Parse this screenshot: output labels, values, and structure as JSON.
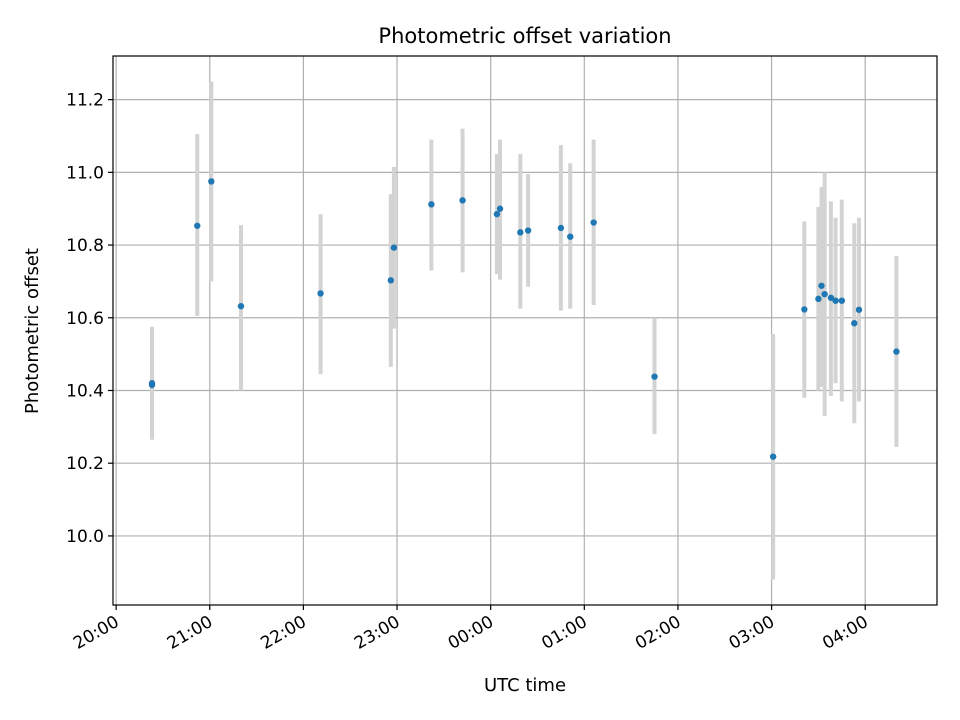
{
  "chart_data": {
    "type": "scatter",
    "title": "Photometric offset variation",
    "xlabel": "UTC time",
    "ylabel": "Photometric offset",
    "grid": true,
    "x_axis": {
      "kind": "time",
      "min": "2000-01-01T19:58",
      "max": "2000-01-02T04:46"
    },
    "ylim": [
      9.81,
      11.32
    ],
    "x_ticks": [
      {
        "t": "2000-01-01T20:00",
        "label": "20:00"
      },
      {
        "t": "2000-01-01T21:00",
        "label": "21:00"
      },
      {
        "t": "2000-01-01T22:00",
        "label": "22:00"
      },
      {
        "t": "2000-01-01T23:00",
        "label": "23:00"
      },
      {
        "t": "2000-01-02T00:00",
        "label": "00:00"
      },
      {
        "t": "2000-01-02T01:00",
        "label": "01:00"
      },
      {
        "t": "2000-01-02T02:00",
        "label": "02:00"
      },
      {
        "t": "2000-01-02T03:00",
        "label": "03:00"
      },
      {
        "t": "2000-01-02T04:00",
        "label": "04:00"
      }
    ],
    "y_ticks": [
      {
        "v": 10.0,
        "label": "10.0"
      },
      {
        "v": 10.2,
        "label": "10.2"
      },
      {
        "v": 10.4,
        "label": "10.4"
      },
      {
        "v": 10.6,
        "label": "10.6"
      },
      {
        "v": 10.8,
        "label": "10.8"
      },
      {
        "v": 11.0,
        "label": "11.0"
      },
      {
        "v": 11.2,
        "label": "11.2"
      }
    ],
    "colors": {
      "points": "#1f77b4",
      "errorbars": "#d3d3d3",
      "grid": "#b0b0b0"
    },
    "points": [
      {
        "t": "2000-01-01T20:23",
        "y": 10.415,
        "lo": 10.265,
        "hi": 10.575
      },
      {
        "t": "2000-01-01T20:23",
        "y": 10.42,
        "lo": 10.265,
        "hi": 10.575
      },
      {
        "t": "2000-01-01T20:52",
        "y": 10.853,
        "lo": 10.605,
        "hi": 11.105
      },
      {
        "t": "2000-01-01T21:01",
        "y": 10.975,
        "lo": 10.7,
        "hi": 11.25
      },
      {
        "t": "2000-01-01T21:20",
        "y": 10.632,
        "lo": 10.4,
        "hi": 10.855
      },
      {
        "t": "2000-01-01T22:11",
        "y": 10.667,
        "lo": 10.445,
        "hi": 10.885
      },
      {
        "t": "2000-01-01T22:56",
        "y": 10.703,
        "lo": 10.465,
        "hi": 10.94
      },
      {
        "t": "2000-01-01T22:58",
        "y": 10.793,
        "lo": 10.57,
        "hi": 11.015
      },
      {
        "t": "2000-01-01T23:22",
        "y": 10.912,
        "lo": 10.73,
        "hi": 11.09
      },
      {
        "t": "2000-01-01T23:42",
        "y": 10.923,
        "lo": 10.725,
        "hi": 11.12
      },
      {
        "t": "2000-01-02T00:04",
        "y": 10.885,
        "lo": 10.72,
        "hi": 11.05
      },
      {
        "t": "2000-01-02T00:06",
        "y": 10.9,
        "lo": 10.705,
        "hi": 11.09
      },
      {
        "t": "2000-01-02T00:19",
        "y": 10.835,
        "lo": 10.625,
        "hi": 11.05
      },
      {
        "t": "2000-01-02T00:24",
        "y": 10.84,
        "lo": 10.685,
        "hi": 10.995
      },
      {
        "t": "2000-01-02T00:45",
        "y": 10.847,
        "lo": 10.62,
        "hi": 11.075
      },
      {
        "t": "2000-01-02T00:51",
        "y": 10.823,
        "lo": 10.625,
        "hi": 11.025
      },
      {
        "t": "2000-01-02T01:06",
        "y": 10.862,
        "lo": 10.635,
        "hi": 11.09
      },
      {
        "t": "2000-01-02T01:45",
        "y": 10.438,
        "lo": 10.28,
        "hi": 10.6
      },
      {
        "t": "2000-01-02T03:01",
        "y": 10.218,
        "lo": 9.88,
        "hi": 10.555
      },
      {
        "t": "2000-01-02T03:21",
        "y": 10.623,
        "lo": 10.38,
        "hi": 10.865
      },
      {
        "t": "2000-01-02T03:30",
        "y": 10.652,
        "lo": 10.4,
        "hi": 10.905
      },
      {
        "t": "2000-01-02T03:32",
        "y": 10.688,
        "lo": 10.41,
        "hi": 10.96
      },
      {
        "t": "2000-01-02T03:34",
        "y": 10.665,
        "lo": 10.33,
        "hi": 11.0
      },
      {
        "t": "2000-01-02T03:38",
        "y": 10.655,
        "lo": 10.385,
        "hi": 10.92
      },
      {
        "t": "2000-01-02T03:41",
        "y": 10.647,
        "lo": 10.42,
        "hi": 10.875
      },
      {
        "t": "2000-01-02T03:45",
        "y": 10.647,
        "lo": 10.37,
        "hi": 10.925
      },
      {
        "t": "2000-01-02T03:53",
        "y": 10.585,
        "lo": 10.31,
        "hi": 10.86
      },
      {
        "t": "2000-01-02T03:56",
        "y": 10.622,
        "lo": 10.37,
        "hi": 10.875
      },
      {
        "t": "2000-01-02T04:20",
        "y": 10.507,
        "lo": 10.245,
        "hi": 10.77
      }
    ]
  }
}
